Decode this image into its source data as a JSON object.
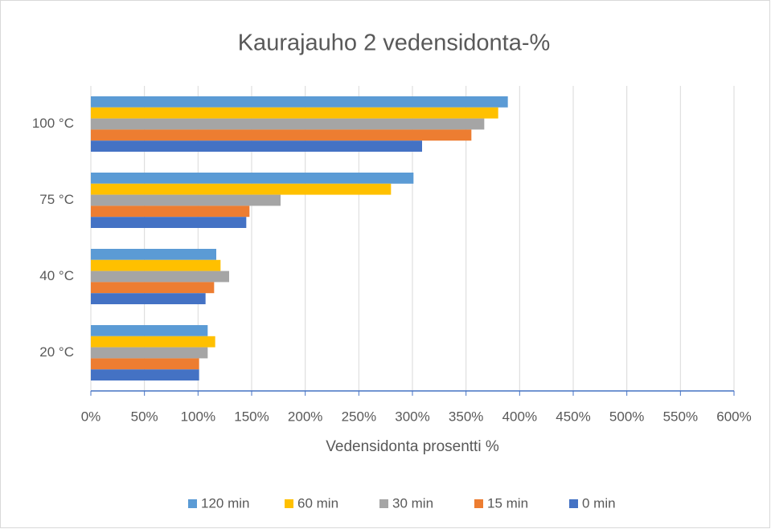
{
  "chart_data": {
    "type": "bar",
    "orientation": "horizontal",
    "title": "Kaurajauho 2 vedensidonta-%",
    "x_label": "Vedensidonta prosentti %",
    "categories": [
      "20 °C",
      "40 °C",
      "75 °C",
      "100 °C"
    ],
    "series": [
      {
        "name": "120 min",
        "color": "#5b9bd5",
        "values": [
          109,
          117,
          301,
          389
        ]
      },
      {
        "name": "60 min",
        "color": "#ffc000",
        "values": [
          116,
          121,
          280,
          380
        ]
      },
      {
        "name": "30 min",
        "color": "#a5a5a5",
        "values": [
          109,
          129,
          177,
          367
        ]
      },
      {
        "name": "15 min",
        "color": "#ed7d31",
        "values": [
          101,
          115,
          148,
          355
        ]
      },
      {
        "name": "0 min",
        "color": "#4472c4",
        "values": [
          101,
          107,
          145,
          309
        ]
      }
    ],
    "xlim": [
      0,
      600
    ],
    "xticks": [
      {
        "value": 0,
        "label": "0%"
      },
      {
        "value": 50,
        "label": "50%"
      },
      {
        "value": 100,
        "label": "100%"
      },
      {
        "value": 150,
        "label": "150%"
      },
      {
        "value": 200,
        "label": "200%"
      },
      {
        "value": 250,
        "label": "250%"
      },
      {
        "value": 300,
        "label": "300%"
      },
      {
        "value": 350,
        "label": "350%"
      },
      {
        "value": 400,
        "label": "400%"
      },
      {
        "value": 450,
        "label": "450%"
      },
      {
        "value": 500,
        "label": "500%"
      },
      {
        "value": 550,
        "label": "550%"
      },
      {
        "value": 600,
        "label": "600%"
      }
    ],
    "grid": true,
    "legend": "bottom"
  }
}
